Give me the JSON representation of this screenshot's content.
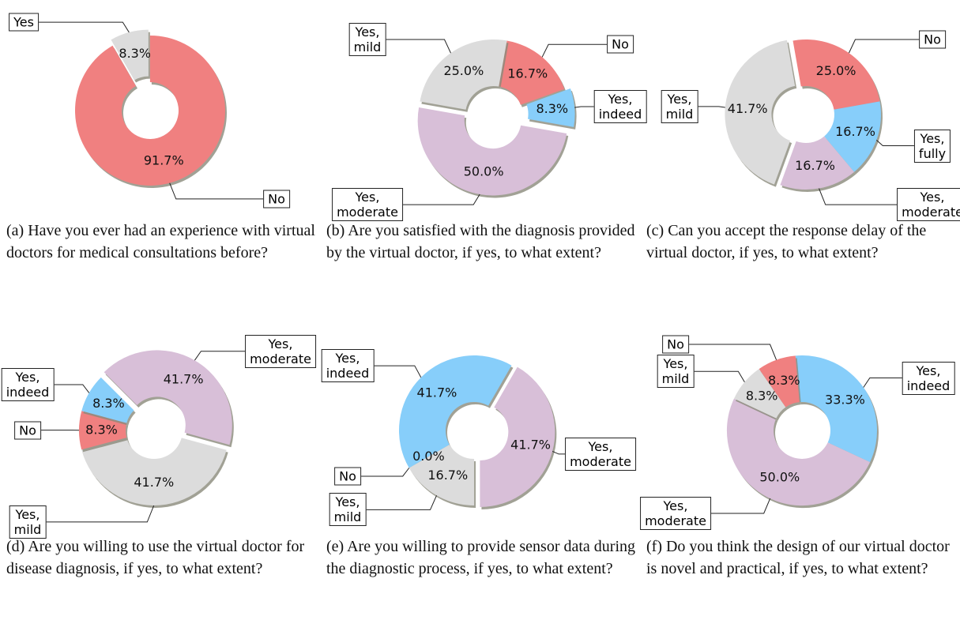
{
  "chart_data": [
    {
      "type": "pie",
      "caption": "(a) Have you ever had an experience with virtual doctors for medical consultations before?",
      "categories": [
        "Yes",
        "No"
      ],
      "values": [
        8.3,
        91.7
      ],
      "value_labels": [
        "8.3%",
        "91.7%"
      ],
      "colors": [
        "#dcdcdc",
        "#f08080"
      ]
    },
    {
      "type": "pie",
      "caption": "(b) Are you satisfied with the diagnosis provided by the virtual doctor, if yes, to what extent?",
      "categories": [
        "No",
        "Yes, indeed",
        "Yes, moderate",
        "Yes, mild"
      ],
      "values": [
        16.7,
        8.3,
        50.0,
        25.0
      ],
      "value_labels": [
        "16.7%",
        "8.3%",
        "50.0%",
        "25.0%"
      ],
      "colors": [
        "#f08080",
        "#87cefa",
        "#d8bfd8",
        "#dcdcdc"
      ]
    },
    {
      "type": "pie",
      "caption": "(c) Can you accept the response delay of the virtual doctor, if yes, to what extent?",
      "categories": [
        "No",
        "Yes, fully",
        "Yes, moderate",
        "Yes, mild"
      ],
      "values": [
        25.0,
        16.7,
        16.7,
        41.7
      ],
      "value_labels": [
        "25.0%",
        "16.7%",
        "16.7%",
        "41.7%"
      ],
      "colors": [
        "#f08080",
        "#87cefa",
        "#d8bfd8",
        "#dcdcdc"
      ]
    },
    {
      "type": "pie",
      "caption": "(d) Are you willing to use the virtual doctor for disease diagnosis, if yes, to what extent?",
      "categories": [
        "Yes, moderate",
        "Yes, mild",
        "No",
        "Yes, indeed"
      ],
      "values": [
        41.7,
        41.7,
        8.3,
        8.3
      ],
      "value_labels": [
        "41.7%",
        "41.7%",
        "8.3%",
        "8.3%"
      ],
      "colors": [
        "#d8bfd8",
        "#dcdcdc",
        "#f08080",
        "#87cefa"
      ]
    },
    {
      "type": "pie",
      "caption": "(e) Are you willing to provide sensor data during the diagnostic process, if yes, to what extent?",
      "categories": [
        "Yes, indeed",
        "Yes, moderate",
        "Yes, mild",
        "No"
      ],
      "values": [
        41.7,
        41.7,
        16.7,
        0.0
      ],
      "value_labels": [
        "41.7%",
        "41.7%",
        "16.7%",
        "0.0%"
      ],
      "colors": [
        "#87cefa",
        "#d8bfd8",
        "#dcdcdc",
        "#f08080"
      ]
    },
    {
      "type": "pie",
      "caption": "(f) Do you think the design of our virtual doctor is novel and practical, if yes, to what extent?",
      "categories": [
        "Yes, indeed",
        "Yes, moderate",
        "Yes, mild",
        "No"
      ],
      "values": [
        33.3,
        50.0,
        8.3,
        8.3
      ],
      "value_labels": [
        "33.3%",
        "50.0%",
        "8.3%",
        "8.3%"
      ],
      "colors": [
        "#87cefa",
        "#d8bfd8",
        "#dcdcdc",
        "#f08080"
      ]
    }
  ]
}
